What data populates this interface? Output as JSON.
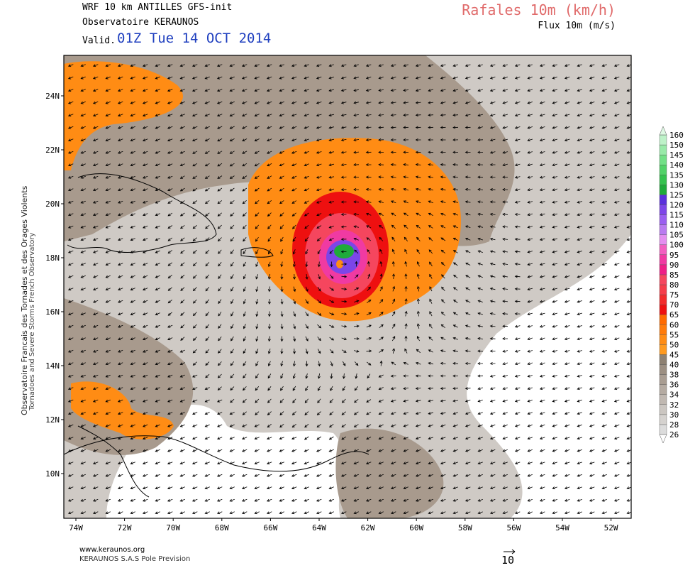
{
  "header": {
    "model_line": "WRF 10 km ANTILLES   GFS-init",
    "observatory": "Observatoire KERAUNOS",
    "valid_label": "Valid.",
    "valid_time": "01Z Tue 14 OCT 2014",
    "parameter_title": "Rafales 10m (km/h)",
    "flux_label": "Flux 10m (m/s)"
  },
  "side_text": {
    "line1": "Observatoire Francais des Tornades et des Orages Violents",
    "line2": "Tornadoes and Severe Storms French Observatory"
  },
  "footer": {
    "url": "www.keraunos.org",
    "company": "KERAUNOS S.A.S Pole Prevision",
    "reference_vector_label": "10"
  },
  "axes": {
    "lat_labels": [
      "24N",
      "22N",
      "20N",
      "18N",
      "16N",
      "14N",
      "12N",
      "10N"
    ],
    "lon_labels": [
      "74W",
      "72W",
      "70W",
      "68W",
      "66W",
      "64W",
      "62W",
      "60W",
      "58W",
      "56W",
      "54W",
      "52W"
    ]
  },
  "colorbar": {
    "levels": [
      {
        "label": "26",
        "color": "#dcdcdc"
      },
      {
        "label": "28",
        "color": "#d5d2cf"
      },
      {
        "label": "30",
        "color": "#cbc6c1"
      },
      {
        "label": "32",
        "color": "#c0b8b1"
      },
      {
        "label": "34",
        "color": "#b5aba2"
      },
      {
        "label": "36",
        "color": "#a99d92"
      },
      {
        "label": "38",
        "color": "#9c8f82"
      },
      {
        "label": "40",
        "color": "#8e8172"
      },
      {
        "label": "45",
        "color": "#ff9a1f"
      },
      {
        "label": "50",
        "color": "#ff8c14"
      },
      {
        "label": "55",
        "color": "#ff7b0a"
      },
      {
        "label": "60",
        "color": "#ff6a00"
      },
      {
        "label": "65",
        "color": "#ee1010"
      },
      {
        "label": "70",
        "color": "#f22b2b"
      },
      {
        "label": "75",
        "color": "#f53d4a"
      },
      {
        "label": "80",
        "color": "#f5465e"
      },
      {
        "label": "85",
        "color": "#ee1f86"
      },
      {
        "label": "90",
        "color": "#f03aa2"
      },
      {
        "label": "95",
        "color": "#f25fc0"
      },
      {
        "label": "100",
        "color": "#e48ef0"
      },
      {
        "label": "105",
        "color": "#b97af0"
      },
      {
        "label": "110",
        "color": "#9a5ef0"
      },
      {
        "label": "115",
        "color": "#7d45e8"
      },
      {
        "label": "120",
        "color": "#5a2fdc"
      },
      {
        "label": "125",
        "color": "#1faa3a"
      },
      {
        "label": "130",
        "color": "#35c24e"
      },
      {
        "label": "135",
        "color": "#52d268"
      },
      {
        "label": "140",
        "color": "#72e086"
      },
      {
        "label": "145",
        "color": "#98eaa8"
      },
      {
        "label": "150",
        "color": "#bdf2c8"
      },
      {
        "label": "160",
        "color": "#def9e3"
      }
    ]
  },
  "colors": {
    "storm_center": "#7a3cdc",
    "storm_core": "#1faa3a",
    "wind_arrow": "#000000"
  },
  "storm": {
    "lon": -63.0,
    "lat": 17.9
  }
}
